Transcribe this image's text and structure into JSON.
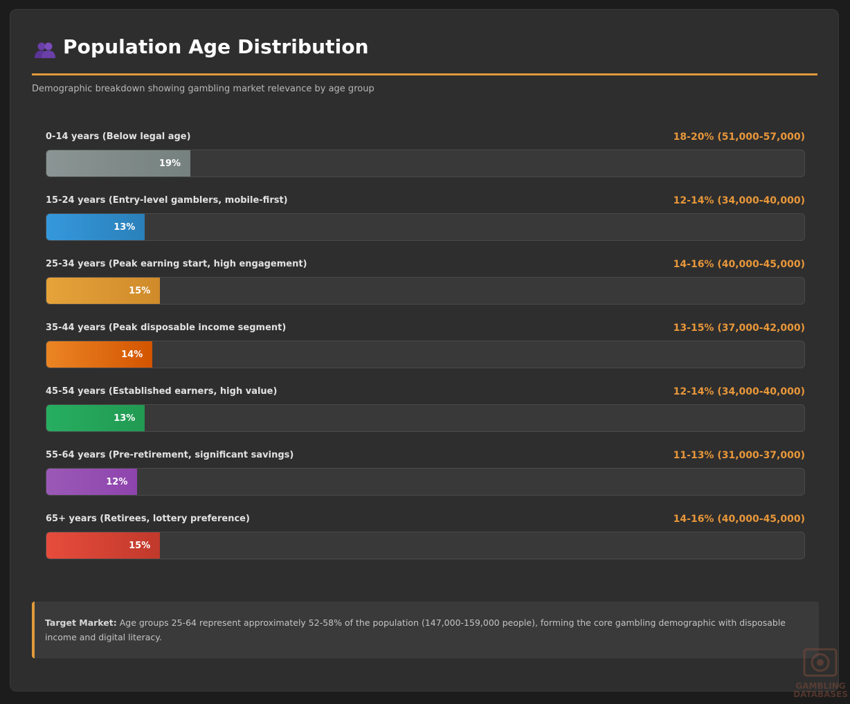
{
  "header": {
    "icon": "people-icon",
    "title": "Population Age Distribution",
    "subtitle": "Demographic breakdown showing gambling market relevance by age group"
  },
  "chart_data": {
    "type": "bar",
    "orientation": "horizontal",
    "title": "Population Age Distribution",
    "subtitle": "Demographic breakdown showing gambling market relevance by age group",
    "xlim": [
      0,
      100
    ],
    "grid": false,
    "legend": "none",
    "categories": [
      "0-14 years (Below legal age)",
      "15-24 years (Entry-level gamblers, mobile-first)",
      "25-34 years (Peak earning start, high engagement)",
      "35-44 years (Peak disposable income segment)",
      "45-54 years (Established earners, high value)",
      "55-64 years (Pre-retirement, significant savings)",
      "65+ years (Retirees, lottery preference)"
    ],
    "values": [
      19,
      13,
      15,
      14,
      13,
      12,
      15
    ],
    "bar_labels": [
      "19%",
      "13%",
      "15%",
      "14%",
      "13%",
      "12%",
      "15%"
    ],
    "range_labels": [
      "18-20% (51,000-57,000)",
      "12-14% (34,000-40,000)",
      "14-16% (40,000-45,000)",
      "13-15% (37,000-42,000)",
      "12-14% (34,000-40,000)",
      "11-13% (31,000-37,000)",
      "14-16% (40,000-45,000)"
    ],
    "colors": [
      [
        "#8a9594",
        "#75817e"
      ],
      [
        "#3598dc",
        "#2a80b9"
      ],
      [
        "#e6a33a",
        "#cf8a2a"
      ],
      [
        "#eb8524",
        "#d35400"
      ],
      [
        "#27ae60",
        "#219a52"
      ],
      [
        "#9b59b6",
        "#8e44ad"
      ],
      [
        "#e74c3c",
        "#c0392b"
      ]
    ]
  },
  "note": {
    "lead": "Target Market:",
    "text": " Age groups 25-64 represent approximately 52-58% of the population (147,000-159,000 people), forming the core gambling demographic with disposable income and digital literacy."
  },
  "watermark": {
    "line1": "GAMBLING",
    "line2": "DATABASES"
  }
}
